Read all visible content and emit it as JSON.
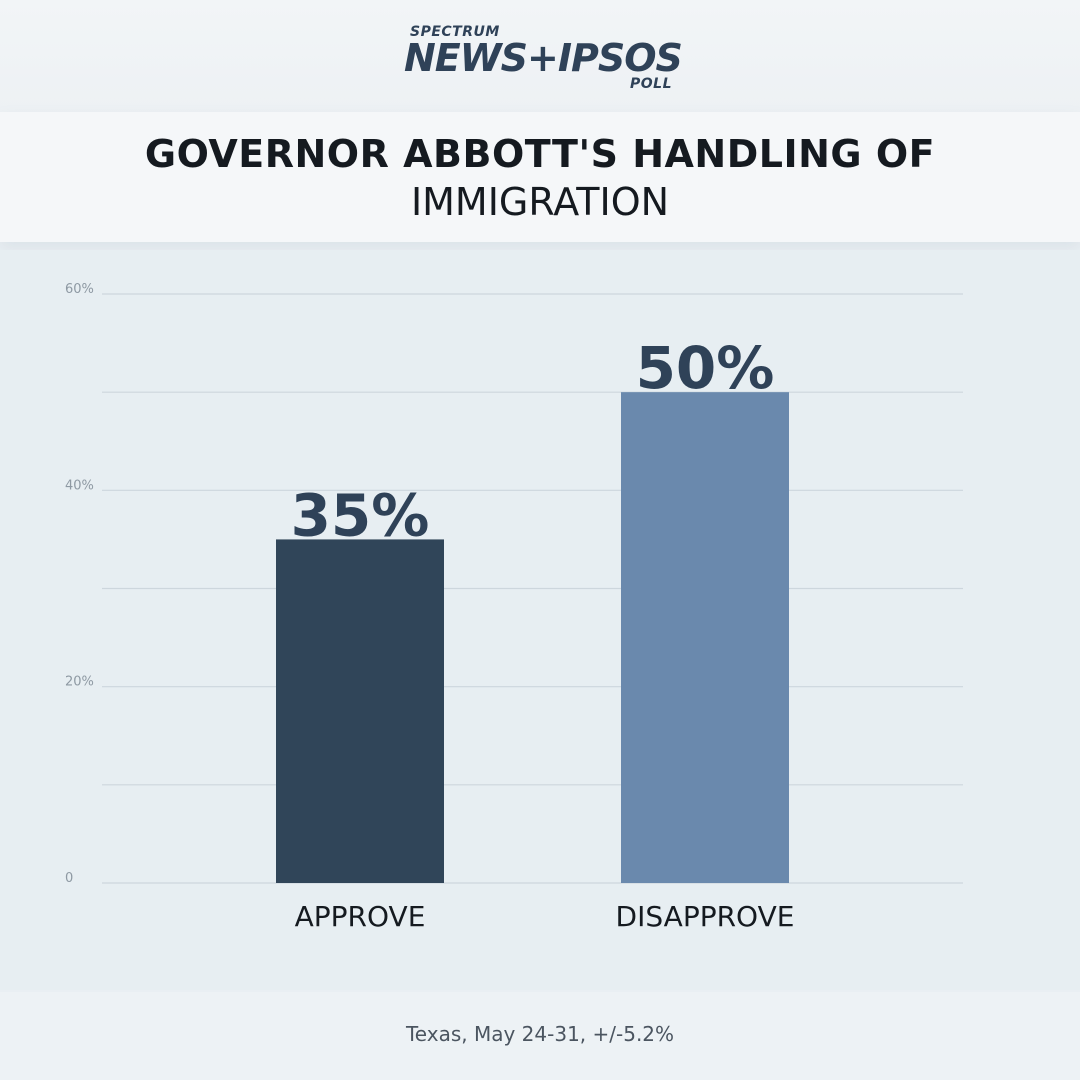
{
  "logo": {
    "top_text": "SPECTRUM",
    "main_text": "NEWS+IPSOS",
    "bottom_text": "POLL"
  },
  "title": {
    "line1": "GOVERNOR ABBOTT'S HANDLING OF",
    "line2": "IMMIGRATION"
  },
  "footer": {
    "text": "Texas, May 24-31, +/-5.2%"
  },
  "chart_data": {
    "type": "bar",
    "categories": [
      "APPROVE",
      "DISAPPROVE"
    ],
    "values": [
      35,
      50
    ],
    "data_labels": [
      "35%",
      "50%"
    ],
    "ylim": [
      0,
      60
    ],
    "y_ticks": [
      {
        "value": 0,
        "label": "0"
      },
      {
        "value": 10,
        "label": ""
      },
      {
        "value": 20,
        "label": "20%"
      },
      {
        "value": 30,
        "label": ""
      },
      {
        "value": 40,
        "label": "40%"
      },
      {
        "value": 50,
        "label": ""
      },
      {
        "value": 60,
        "label": "60%"
      }
    ],
    "colors": [
      "#304559",
      "#6a89ad"
    ],
    "grid": true,
    "label_color": "#2f4258",
    "gridline_color": "#cdd6dd",
    "tick_color": "#8e99a3",
    "category_color": "#151a20"
  }
}
